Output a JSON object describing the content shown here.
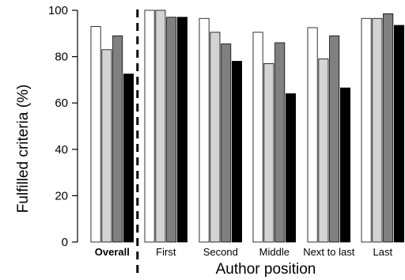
{
  "chart_data": {
    "type": "bar",
    "xlabel": "Author position",
    "ylabel": "Fulfilled criteria (%)",
    "ylim": [
      0,
      100
    ],
    "yticks": [
      "0",
      "20",
      "40",
      "60",
      "80",
      "100"
    ],
    "categories": [
      "Overall",
      "First",
      "Second",
      "Middle",
      "Next to last",
      "Last"
    ],
    "bold_category": "Overall",
    "separator_after": "Overall",
    "grid": false,
    "legend": "none",
    "series": [
      {
        "color": "#ffffff",
        "values": [
          93,
          100,
          96.5,
          90.5,
          92.5,
          96.5
        ]
      },
      {
        "color": "#d3d3d3",
        "values": [
          83,
          100,
          90.5,
          77,
          79,
          96.5
        ]
      },
      {
        "color": "#808080",
        "values": [
          89,
          97,
          85.5,
          86,
          89,
          98.5
        ]
      },
      {
        "color": "#000000",
        "values": [
          72.5,
          97,
          78,
          64,
          66.5,
          93.5
        ]
      }
    ]
  }
}
